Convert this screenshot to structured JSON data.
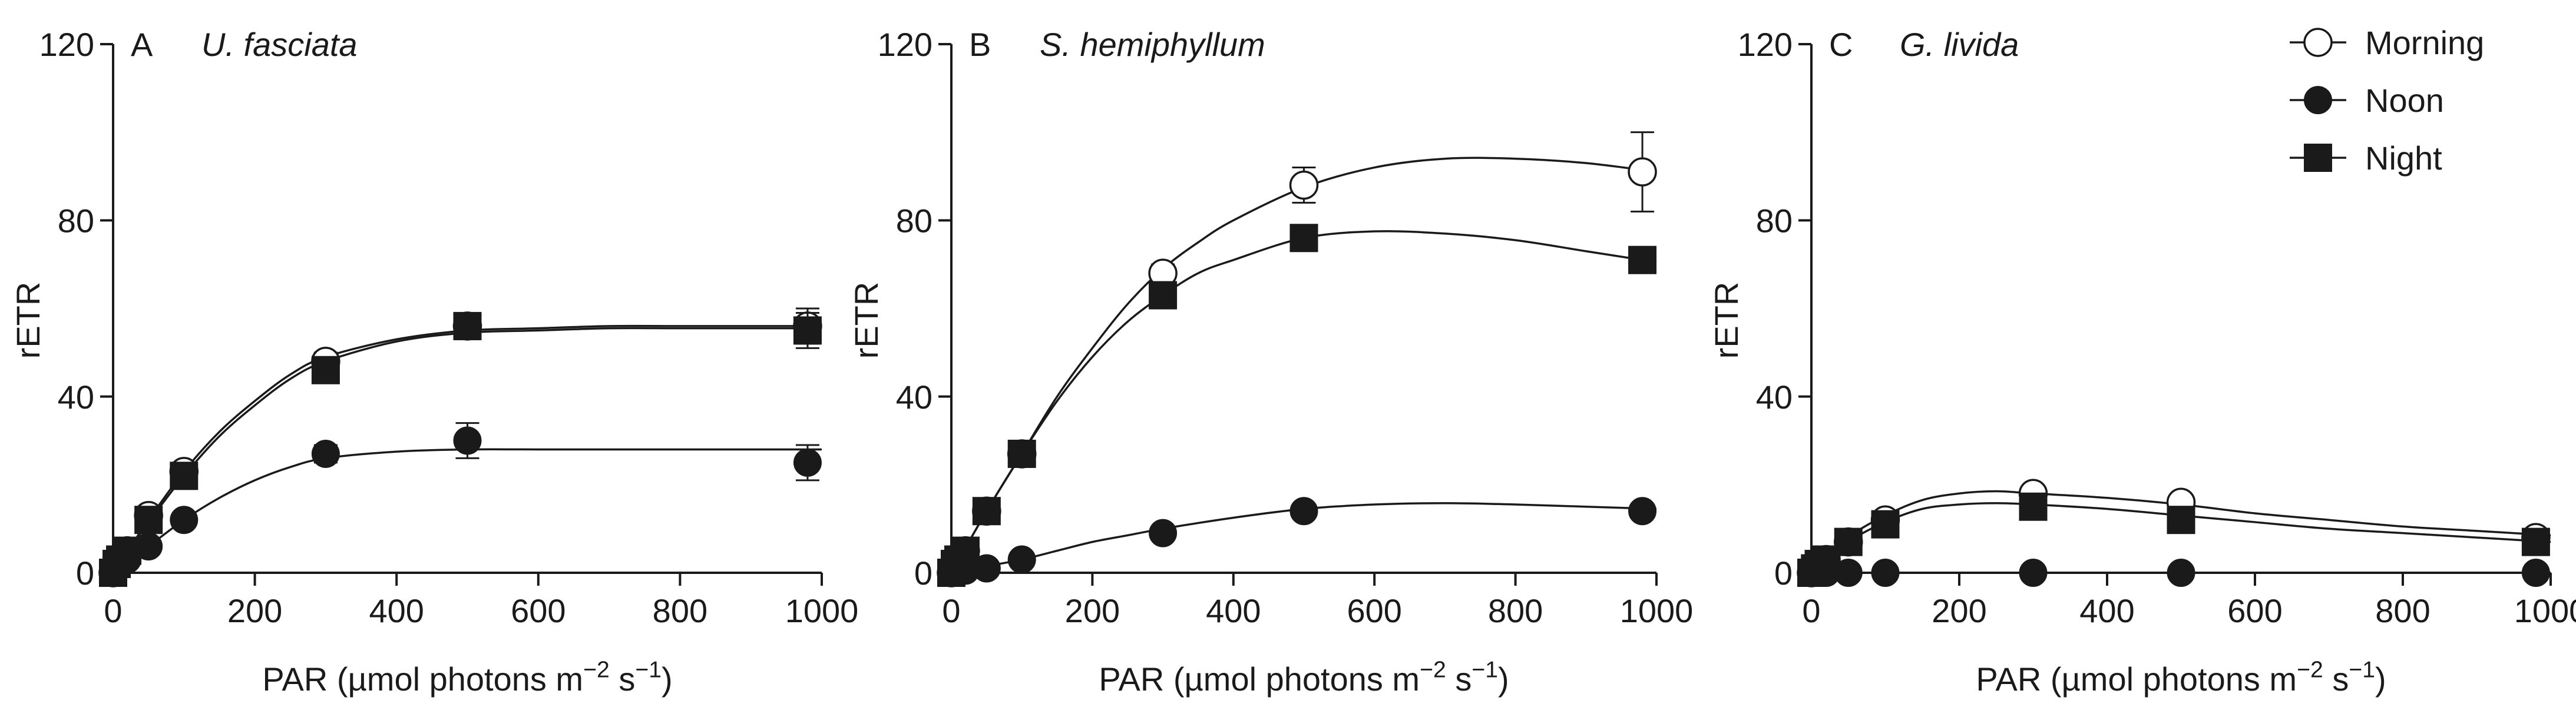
{
  "chart_data": [
    {
      "type": "line",
      "panel_label": "A",
      "title": "U. fasciata",
      "xlabel": "PAR (µmol photons m",
      "xlabel_sup1": "−2",
      "xlabel_mid": " s",
      "xlabel_sup2": "−1",
      "xlabel_end": ")",
      "ylabel": "rETR",
      "xlim": [
        0,
        1000
      ],
      "ylim": [
        0,
        120
      ],
      "xticks": [
        0,
        200,
        400,
        600,
        800,
        1000
      ],
      "yticks": [
        0,
        40,
        80,
        120
      ],
      "series": [
        {
          "name": "Morning",
          "marker": "circle-open",
          "x": [
            0,
            5,
            10,
            20,
            50,
            100,
            300,
            500,
            980
          ],
          "y": [
            0,
            2,
            3,
            5,
            13,
            23,
            48,
            56,
            56
          ],
          "err": [
            0,
            0,
            0,
            0,
            1,
            2,
            2,
            3,
            4
          ],
          "fit_x": [
            0,
            25,
            50,
            100,
            150,
            200,
            250,
            300,
            400,
            500,
            600,
            700,
            800,
            900,
            1000
          ],
          "fit_y": [
            0,
            6,
            12,
            23,
            32,
            39,
            45,
            49,
            53,
            55,
            55.5,
            56,
            56,
            56,
            56
          ]
        },
        {
          "name": "Noon",
          "marker": "circle-filled",
          "x": [
            0,
            5,
            10,
            20,
            50,
            100,
            300,
            500,
            980
          ],
          "y": [
            0,
            1,
            2,
            3,
            6,
            12,
            27,
            30,
            25
          ],
          "err": [
            0,
            0,
            0,
            0,
            1,
            1,
            2,
            4,
            4
          ],
          "fit_x": [
            0,
            25,
            50,
            100,
            150,
            200,
            250,
            300,
            400,
            500,
            600,
            700,
            800,
            900,
            1000
          ],
          "fit_y": [
            0,
            3,
            6,
            12,
            17,
            21,
            24,
            26,
            27.5,
            28,
            28,
            28,
            28,
            28,
            28
          ]
        },
        {
          "name": "Night",
          "marker": "square-filled",
          "x": [
            0,
            5,
            10,
            20,
            50,
            100,
            300,
            500,
            980
          ],
          "y": [
            0,
            2,
            3,
            5,
            12,
            22,
            46,
            56,
            55
          ],
          "err": [
            0,
            0,
            0,
            0,
            1,
            2,
            2,
            3,
            4
          ],
          "fit_x": [
            0,
            25,
            50,
            100,
            150,
            200,
            250,
            300,
            400,
            500,
            600,
            700,
            800,
            900,
            1000
          ],
          "fit_y": [
            0,
            6,
            11.5,
            22,
            31,
            38,
            44,
            48,
            52.5,
            54.5,
            55,
            55.5,
            55.5,
            55.5,
            55.5
          ]
        }
      ]
    },
    {
      "type": "line",
      "panel_label": "B",
      "title": "S. hemiphyllum",
      "xlabel": "PAR (µmol photons m",
      "xlabel_sup1": "−2",
      "xlabel_mid": " s",
      "xlabel_sup2": "−1",
      "xlabel_end": ")",
      "ylabel": "rETR",
      "xlim": [
        0,
        1000
      ],
      "ylim": [
        0,
        120
      ],
      "xticks": [
        0,
        200,
        400,
        600,
        800,
        1000
      ],
      "yticks": [
        0,
        40,
        80,
        120
      ],
      "series": [
        {
          "name": "Morning",
          "marker": "circle-open",
          "x": [
            0,
            5,
            10,
            20,
            50,
            100,
            300,
            500,
            980
          ],
          "y": [
            0,
            2,
            3,
            5,
            14,
            27,
            68,
            88,
            91
          ],
          "err": [
            0,
            0,
            0,
            0,
            1,
            2,
            2,
            4,
            9
          ],
          "fit_x": [
            0,
            50,
            100,
            150,
            200,
            250,
            300,
            350,
            400,
            500,
            600,
            700,
            800,
            900,
            1000
          ],
          "fit_y": [
            0,
            14,
            27,
            40,
            51,
            61,
            69,
            75,
            80,
            87.5,
            92,
            94,
            94,
            93,
            91
          ]
        },
        {
          "name": "Noon",
          "marker": "circle-filled",
          "x": [
            0,
            5,
            10,
            20,
            50,
            100,
            300,
            500,
            980
          ],
          "y": [
            0,
            0,
            0.5,
            0.5,
            1,
            3,
            9,
            14,
            14
          ],
          "err": [
            0,
            0,
            0,
            0,
            0,
            0,
            1,
            1,
            1
          ],
          "fit_x": [
            0,
            50,
            100,
            150,
            200,
            250,
            300,
            400,
            500,
            600,
            700,
            800,
            900,
            1000
          ],
          "fit_y": [
            0,
            1.5,
            3,
            5,
            7,
            8.5,
            10,
            12.5,
            14.5,
            15.5,
            15.8,
            15.5,
            15,
            14.5
          ]
        },
        {
          "name": "Night",
          "marker": "square-filled",
          "x": [
            0,
            5,
            10,
            20,
            50,
            100,
            300,
            500,
            980
          ],
          "y": [
            0,
            2,
            3,
            5,
            14,
            27,
            63,
            76,
            71
          ],
          "err": [
            0,
            0,
            0,
            0,
            1,
            2,
            2,
            2,
            2
          ],
          "fit_x": [
            0,
            50,
            100,
            150,
            200,
            250,
            300,
            350,
            400,
            500,
            600,
            700,
            800,
            900,
            1000
          ],
          "fit_y": [
            0,
            14,
            27,
            39,
            49,
            57,
            63,
            68,
            71,
            76,
            77.5,
            77,
            75.5,
            73,
            70.5
          ]
        }
      ]
    },
    {
      "type": "line",
      "panel_label": "C",
      "title": "G. livida",
      "xlabel": "PAR (µmol photons m",
      "xlabel_sup1": "−2",
      "xlabel_mid": " s",
      "xlabel_sup2": "−1",
      "xlabel_end": ")",
      "ylabel": "rETR",
      "xlim": [
        0,
        1000
      ],
      "ylim": [
        0,
        120
      ],
      "xticks": [
        0,
        200,
        400,
        600,
        800,
        1000
      ],
      "yticks": [
        0,
        40,
        80,
        120
      ],
      "legend_position": "top-right",
      "series": [
        {
          "name": "Morning",
          "marker": "circle-open",
          "x": [
            0,
            5,
            10,
            20,
            50,
            100,
            300,
            500,
            980
          ],
          "y": [
            0,
            1,
            2,
            3,
            7,
            12,
            18,
            16,
            8
          ],
          "err": [
            0,
            0,
            0,
            0,
            0,
            0,
            0,
            0,
            0
          ],
          "fit_x": [
            0,
            50,
            100,
            150,
            200,
            250,
            300,
            400,
            500,
            600,
            700,
            800,
            900,
            1000
          ],
          "fit_y": [
            0,
            8,
            13,
            16.5,
            18,
            18.5,
            18,
            17,
            15.5,
            13.5,
            12,
            10.5,
            9.5,
            8.5
          ]
        },
        {
          "name": "Noon",
          "marker": "circle-filled",
          "x": [
            0,
            5,
            10,
            20,
            50,
            100,
            300,
            500,
            980
          ],
          "y": [
            0,
            0,
            0,
            0,
            0,
            0,
            0,
            0,
            0
          ],
          "err": [
            0,
            0,
            0,
            0,
            0,
            0,
            0,
            0,
            0
          ]
        },
        {
          "name": "Night",
          "marker": "square-filled",
          "x": [
            0,
            5,
            10,
            20,
            50,
            100,
            300,
            500,
            980
          ],
          "y": [
            0,
            1,
            2,
            3,
            7,
            11,
            15,
            12,
            7
          ],
          "err": [
            0,
            0,
            0,
            0,
            0,
            0,
            0,
            0,
            0
          ],
          "fit_x": [
            0,
            50,
            100,
            150,
            200,
            250,
            300,
            400,
            500,
            600,
            700,
            800,
            900,
            1000
          ],
          "fit_y": [
            0,
            7,
            11.5,
            14.5,
            15.5,
            15.8,
            15.5,
            14.5,
            13,
            11.5,
            10,
            9,
            8,
            7
          ]
        }
      ]
    }
  ]
}
